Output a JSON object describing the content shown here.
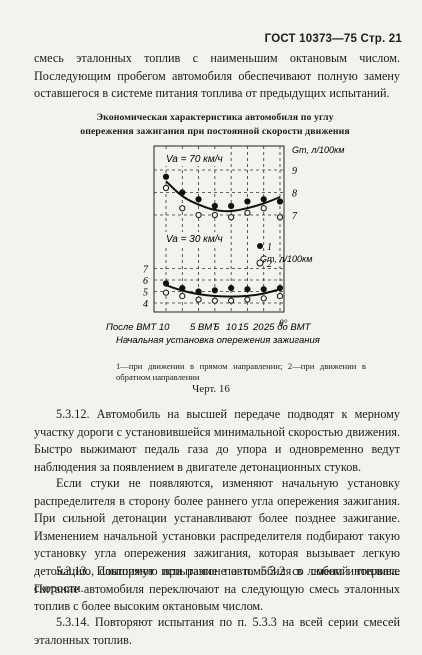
{
  "header": "ГОСТ 10373—75  Стр. 21",
  "intro_text": "смесь эталонных топлив с наименьшим октановым числом. Последующим пробегом автомобиля обеспечивают полную замену оставшегося в системе питания топлива от предыдущих испытаний.",
  "figure": {
    "title_line1": "Экономическая характеристика автомобиля по углу",
    "title_line2": "опережения зажигания при постоянной скорости движения",
    "note": "1—при движении в прямом направлении; 2—при движении в обратном направлении",
    "name": "Черт. 16"
  },
  "chart_data": [
    {
      "type": "scatter",
      "annotation": "Va = 70 км/ч",
      "ylabel": "Gт, л/100км",
      "yticks": [
        "9",
        "8",
        "7"
      ],
      "xticks": [
        "После ВМТ 10",
        "5 ВМТ",
        "5",
        "10",
        "15",
        "20",
        "25 до ВМТ"
      ],
      "xlabel": "Начальная установка опережения зажигания",
      "x_unit": "θ°",
      "legend": [
        "1",
        "2"
      ],
      "series": [
        {
          "name": "1",
          "values": [
            [
              -10,
              8.7
            ],
            [
              -5,
              8.0
            ],
            [
              0,
              7.7
            ],
            [
              5,
              7.4
            ],
            [
              10,
              7.4
            ],
            [
              15,
              7.6
            ],
            [
              20,
              7.7
            ],
            [
              25,
              7.6
            ]
          ]
        },
        {
          "name": "2",
          "values": [
            [
              -10,
              8.2
            ],
            [
              -5,
              7.3
            ],
            [
              0,
              7.0
            ],
            [
              5,
              7.0
            ],
            [
              10,
              6.9
            ],
            [
              15,
              7.1
            ],
            [
              20,
              7.3
            ],
            [
              25,
              6.9
            ]
          ]
        }
      ],
      "trend": [
        [
          -10,
          8.5
        ],
        [
          -5,
          7.8
        ],
        [
          0,
          7.45
        ],
        [
          5,
          7.2
        ],
        [
          10,
          7.15
        ],
        [
          15,
          7.3
        ],
        [
          20,
          7.5
        ],
        [
          25,
          7.8
        ]
      ]
    },
    {
      "type": "scatter",
      "annotation": "Va = 30 км/ч",
      "ylabel": "Gт, л/100км",
      "yticks": [
        "7",
        "6",
        "5",
        "4"
      ],
      "xticks": [
        "После ВМТ 10",
        "5 ВМТ",
        "5",
        "10",
        "15",
        "20",
        "25 до ВМТ"
      ],
      "xlabel": "Начальная установка опережения зажигания",
      "x_unit": "θ°",
      "legend": [
        "1",
        "2"
      ],
      "series": [
        {
          "name": "1",
          "values": [
            [
              -10,
              5.7
            ],
            [
              -5,
              5.3
            ],
            [
              0,
              5.0
            ],
            [
              5,
              5.1
            ],
            [
              10,
              5.3
            ],
            [
              15,
              5.2
            ],
            [
              20,
              5.2
            ],
            [
              25,
              5.3
            ]
          ]
        },
        {
          "name": "2",
          "values": [
            [
              -10,
              4.9
            ],
            [
              -5,
              4.6
            ],
            [
              0,
              4.3
            ],
            [
              5,
              4.2
            ],
            [
              10,
              4.2
            ],
            [
              15,
              4.3
            ],
            [
              20,
              4.4
            ],
            [
              25,
              4.6
            ]
          ]
        }
      ],
      "trend": [
        [
          -10,
          5.55
        ],
        [
          -5,
          5.05
        ],
        [
          0,
          4.75
        ],
        [
          5,
          4.6
        ],
        [
          10,
          4.55
        ],
        [
          15,
          4.6
        ],
        [
          20,
          4.8
        ],
        [
          25,
          5.2
        ]
      ]
    }
  ],
  "sections": [
    {
      "text": "5.3.12. Автомобиль на высшей передаче подводят к мерному участку дороги с установившейся минимальной скоростью движения. Быстро выжимают педаль газа до упора и одновременно ведут наблюдения за появлением в двигателе детонационных стуков."
    },
    {
      "text": "Если стуки не появляются, изменяют начальную установку распределителя в сторону более раннего угла опережения зажигания. При сильной детонации устанавливают более позднее зажигание. Изменением начальной установки распределителя подбирают такую установку угла опережения зажигания, которая вызывает легкую детонацию, слышимую при разгоне автомобиля в любом интервале скорости."
    },
    {
      "text": "5.3.13. Повторяют испытание по п. 5.3.2 со сменой топлива. Питание автомобиля переключают на следующую смесь эталонных топлив с более высоким октановым числом."
    },
    {
      "text": "5.3.14. Повторяют испытания по п. 5.3.3 на всей серии смесей эталонных топлив."
    }
  ]
}
